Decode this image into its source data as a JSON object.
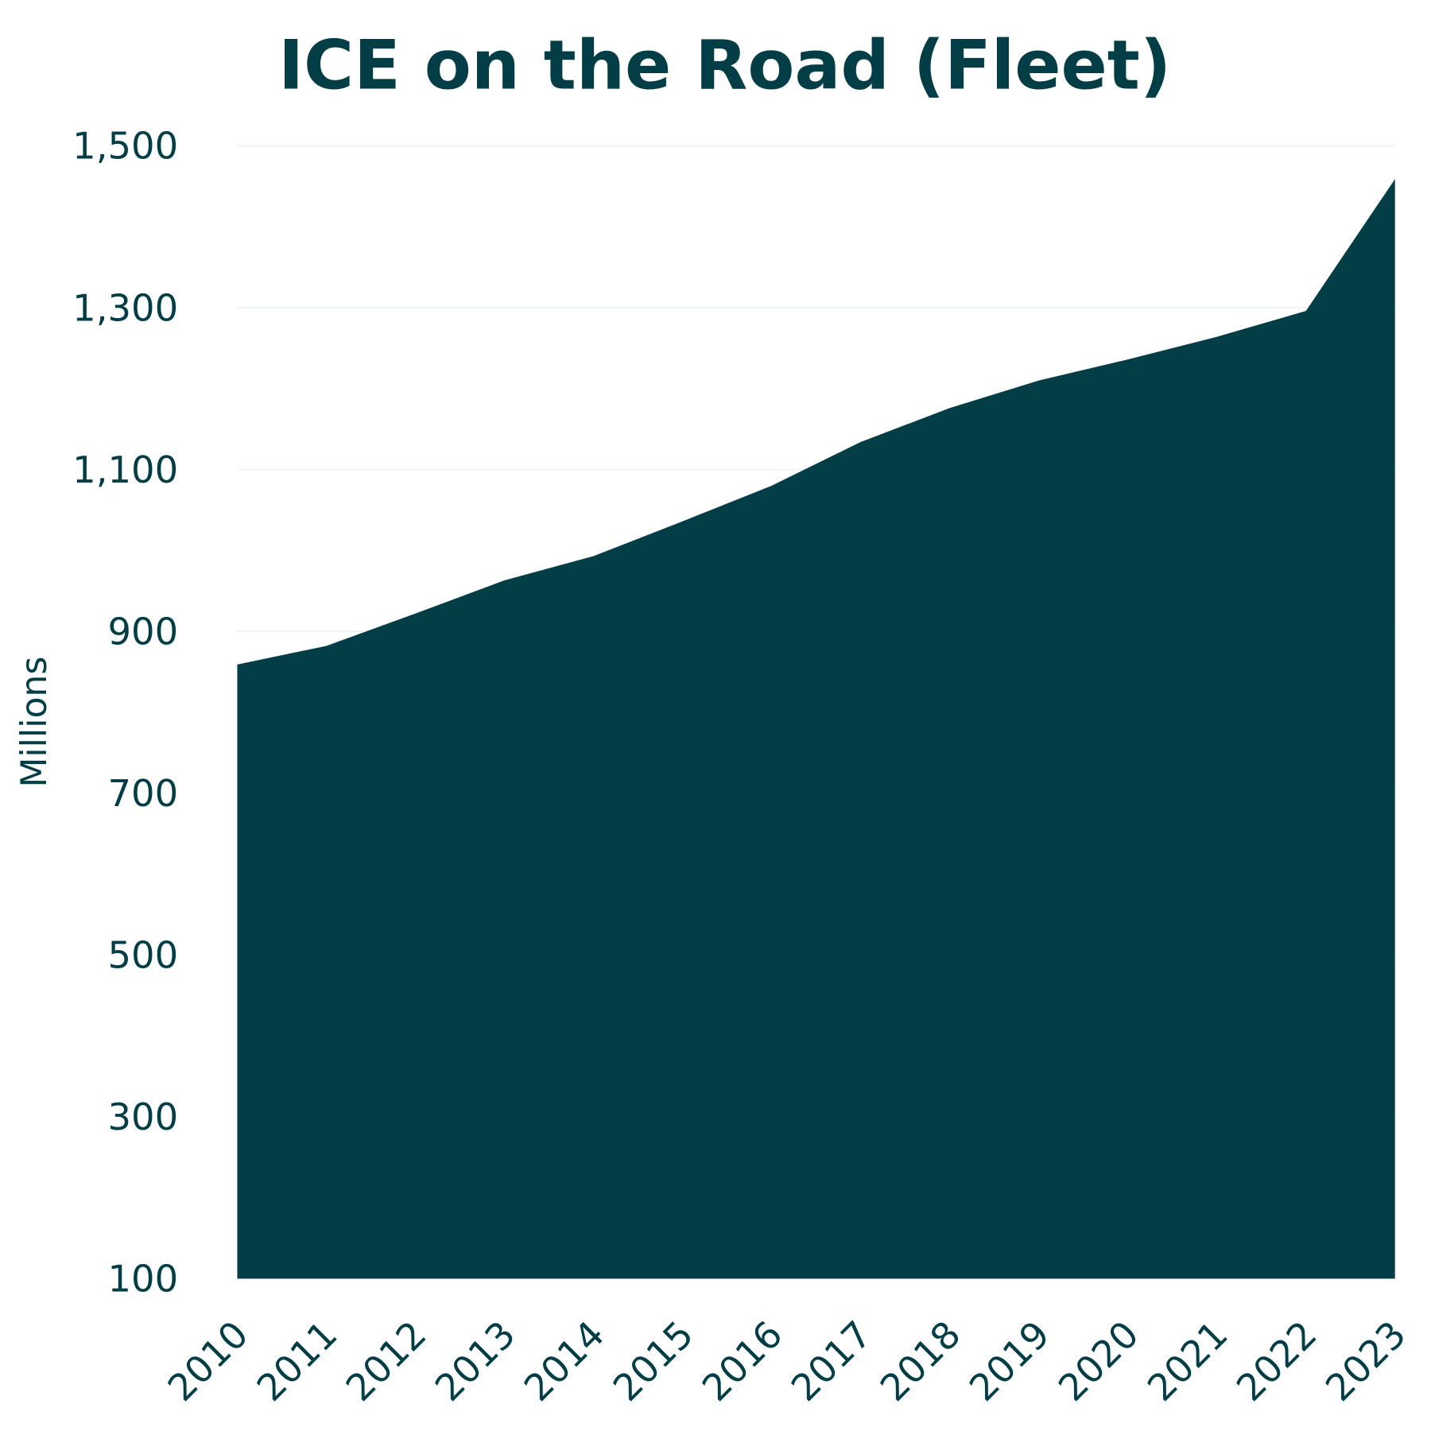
{
  "chart_data": {
    "type": "area",
    "title": "ICE on the Road (Fleet)",
    "xlabel": "",
    "ylabel": "Millions",
    "categories": [
      "2010",
      "2011",
      "2012",
      "2013",
      "2014",
      "2015",
      "2016",
      "2017",
      "2018",
      "2019",
      "2020",
      "2021",
      "2022",
      "2023"
    ],
    "values": [
      859,
      882,
      922,
      963,
      993,
      1036,
      1080,
      1134,
      1176,
      1210,
      1236,
      1264,
      1296,
      1459
    ],
    "ylim": [
      100,
      1500
    ],
    "yticks": [
      "100",
      "300",
      "500",
      "700",
      "900",
      "1,100",
      "1,300",
      "1,500"
    ],
    "ytick_values": [
      100,
      300,
      500,
      700,
      900,
      1100,
      1300,
      1500
    ],
    "grid": true,
    "legend": "none",
    "colors": {
      "fill": "#033d45",
      "text": "#033d45",
      "grid": "#eef4f4"
    }
  }
}
